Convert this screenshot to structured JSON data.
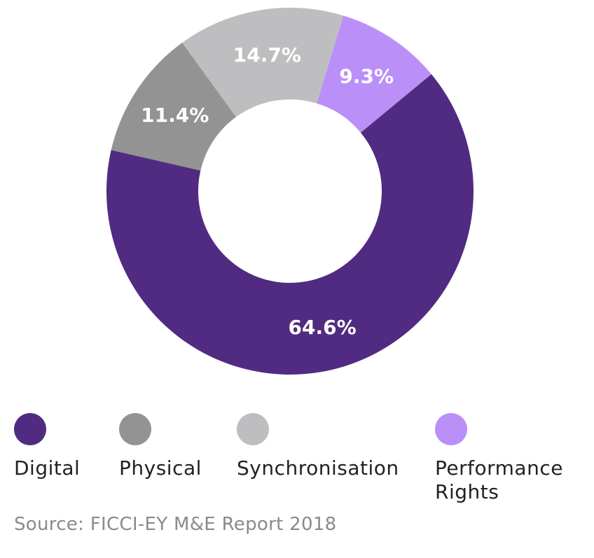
{
  "chart_data": {
    "type": "pie",
    "variant": "donut",
    "categories": [
      "Digital",
      "Physical",
      "Synchronisation",
      "Performance Rights"
    ],
    "values": [
      64.6,
      11.4,
      14.7,
      9.3
    ],
    "value_labels": [
      "64.6%",
      "11.4%",
      "14.7%",
      "9.3%"
    ],
    "unit": "%",
    "title": "",
    "legend_position": "bottom",
    "colors": [
      "#512B81",
      "#939393",
      "#BEBEC0",
      "#BB8FF8"
    ]
  },
  "legend": [
    {
      "label": "Digital",
      "color": "#512B81"
    },
    {
      "label": "Physical",
      "color": "#939393"
    },
    {
      "label": "Synchronisation",
      "color": "#BEBEC0"
    },
    {
      "label": "Performance\nRights",
      "color": "#BB8FF8"
    }
  ],
  "source": "Source: FICCI-EY M&E Report 2018"
}
